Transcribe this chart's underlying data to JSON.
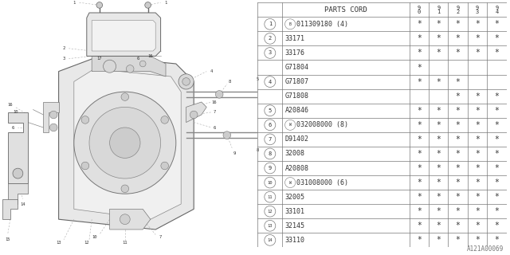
{
  "diagram_id": "A121A00069",
  "bg_color": "#ffffff",
  "table_header": "PARTS CORD",
  "year_cols": [
    "9\n0",
    "9\n1",
    "9\n2",
    "9\n3",
    "9\n4"
  ],
  "rows": [
    {
      "num": "1",
      "part": "B011309180 (4)",
      "cp": "B",
      "marks": [
        1,
        1,
        1,
        1,
        1
      ]
    },
    {
      "num": "2",
      "part": "33171",
      "cp": "",
      "marks": [
        1,
        1,
        1,
        1,
        1
      ]
    },
    {
      "num": "3",
      "part": "33176",
      "cp": "",
      "marks": [
        1,
        1,
        1,
        1,
        1
      ]
    },
    {
      "num": "",
      "part": "G71804",
      "cp": "",
      "marks": [
        1,
        0,
        0,
        0,
        0
      ]
    },
    {
      "num": "4",
      "part": "G71807",
      "cp": "",
      "marks": [
        1,
        1,
        1,
        0,
        0
      ]
    },
    {
      "num": "",
      "part": "G71808",
      "cp": "",
      "marks": [
        0,
        0,
        1,
        1,
        1
      ]
    },
    {
      "num": "5",
      "part": "A20846",
      "cp": "",
      "marks": [
        1,
        1,
        1,
        1,
        1
      ]
    },
    {
      "num": "6",
      "part": "W032008000 (8)",
      "cp": "W",
      "marks": [
        1,
        1,
        1,
        1,
        1
      ]
    },
    {
      "num": "7",
      "part": "D91402",
      "cp": "",
      "marks": [
        1,
        1,
        1,
        1,
        1
      ]
    },
    {
      "num": "8",
      "part": "32008",
      "cp": "",
      "marks": [
        1,
        1,
        1,
        1,
        1
      ]
    },
    {
      "num": "9",
      "part": "A20808",
      "cp": "",
      "marks": [
        1,
        1,
        1,
        1,
        1
      ]
    },
    {
      "num": "10",
      "part": "W031008000 (6)",
      "cp": "W",
      "marks": [
        1,
        1,
        1,
        1,
        1
      ]
    },
    {
      "num": "11",
      "part": "32005",
      "cp": "",
      "marks": [
        1,
        1,
        1,
        1,
        1
      ]
    },
    {
      "num": "12",
      "part": "33101",
      "cp": "",
      "marks": [
        1,
        1,
        1,
        1,
        1
      ]
    },
    {
      "num": "13",
      "part": "32145",
      "cp": "",
      "marks": [
        1,
        1,
        1,
        1,
        1
      ]
    },
    {
      "num": "14",
      "part": "33110",
      "cp": "",
      "marks": [
        1,
        1,
        1,
        1,
        1
      ]
    }
  ],
  "tc": "#333333",
  "lc": "#777777",
  "fs_header": 6.5,
  "fs_part": 6.0,
  "fs_num": 5.0,
  "fs_mark": 7.0,
  "fs_yr": 5.5
}
